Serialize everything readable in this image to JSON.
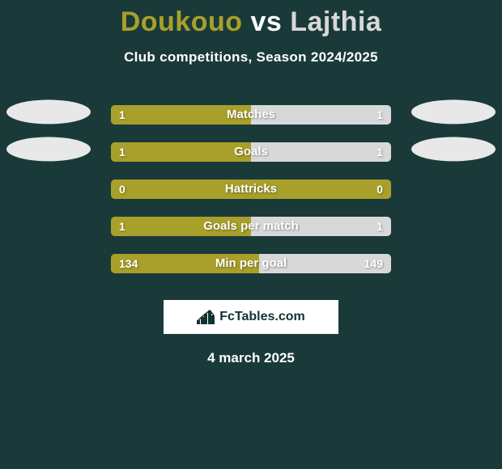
{
  "background_color": "#1a3a3a",
  "title": {
    "player1": "Doukouo",
    "vs": " vs ",
    "player2": "Lajthia",
    "color1": "#a8a02a",
    "color_vs": "#ffffff",
    "color2": "#d8d8d8",
    "fontsize": 34
  },
  "subtitle": {
    "text": "Club competitions, Season 2024/2025",
    "color": "#ffffff",
    "fontsize": 17
  },
  "bar_colors": {
    "left": "#a8a02a",
    "right": "#d8d8d8",
    "value_text": "#ffffff",
    "metric_text": "#ffffff"
  },
  "oval_colors": {
    "left": "#e8e8e8",
    "right": "#e8e8e8"
  },
  "rows": [
    {
      "metric": "Matches",
      "left_val": "1",
      "right_val": "1",
      "left_pct": 50,
      "right_pct": 50,
      "show_ovals": true
    },
    {
      "metric": "Goals",
      "left_val": "1",
      "right_val": "1",
      "left_pct": 50,
      "right_pct": 50,
      "show_ovals": true
    },
    {
      "metric": "Hattricks",
      "left_val": "0",
      "right_val": "0",
      "left_pct": 100,
      "right_pct": 0,
      "show_ovals": false
    },
    {
      "metric": "Goals per match",
      "left_val": "1",
      "right_val": "1",
      "left_pct": 50,
      "right_pct": 50,
      "show_ovals": false
    },
    {
      "metric": "Min per goal",
      "left_val": "134",
      "right_val": "149",
      "left_pct": 53,
      "right_pct": 47,
      "show_ovals": false
    }
  ],
  "brand": {
    "box_bg": "#ffffff",
    "text": "FcTables.com",
    "text_color": "#123232",
    "icon_color": "#123232",
    "icon_bars": [
      5,
      9,
      13,
      17,
      11
    ]
  },
  "date": {
    "text": "4 march 2025",
    "color": "#ffffff",
    "fontsize": 17
  }
}
